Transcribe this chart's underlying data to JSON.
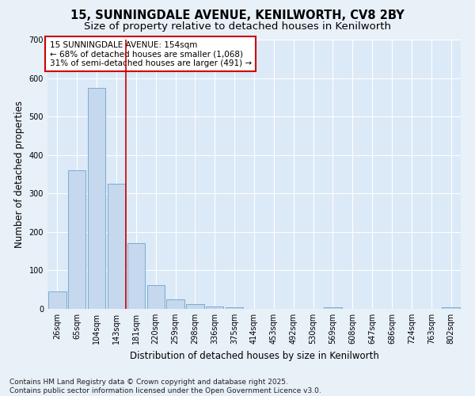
{
  "title_line1": "15, SUNNINGDALE AVENUE, KENILWORTH, CV8 2BY",
  "title_line2": "Size of property relative to detached houses in Kenilworth",
  "xlabel": "Distribution of detached houses by size in Kenilworth",
  "ylabel": "Number of detached properties",
  "bar_color": "#c5d8ee",
  "bar_edge_color": "#7aabce",
  "background_color": "#e8f0f8",
  "plot_bg_color": "#dce9f7",
  "grid_color": "#ffffff",
  "categories": [
    "26sqm",
    "65sqm",
    "104sqm",
    "143sqm",
    "181sqm",
    "220sqm",
    "259sqm",
    "298sqm",
    "336sqm",
    "375sqm",
    "414sqm",
    "453sqm",
    "492sqm",
    "530sqm",
    "569sqm",
    "608sqm",
    "647sqm",
    "686sqm",
    "724sqm",
    "763sqm",
    "802sqm"
  ],
  "values": [
    46,
    360,
    575,
    325,
    170,
    62,
    24,
    12,
    7,
    4,
    0,
    0,
    0,
    0,
    4,
    0,
    0,
    0,
    0,
    0,
    4
  ],
  "ylim": [
    0,
    700
  ],
  "yticks": [
    0,
    100,
    200,
    300,
    400,
    500,
    600,
    700
  ],
  "vline_x": 3.5,
  "vline_color": "#cc0000",
  "annotation_text": "15 SUNNINGDALE AVENUE: 154sqm\n← 68% of detached houses are smaller (1,068)\n31% of semi-detached houses are larger (491) →",
  "annotation_box_facecolor": "#ffffff",
  "annotation_box_edgecolor": "#cc0000",
  "footer_line1": "Contains HM Land Registry data © Crown copyright and database right 2025.",
  "footer_line2": "Contains public sector information licensed under the Open Government Licence v3.0.",
  "title_fontsize": 10.5,
  "subtitle_fontsize": 9.5,
  "tick_fontsize": 7,
  "ylabel_fontsize": 8.5,
  "xlabel_fontsize": 8.5,
  "annotation_fontsize": 7.5,
  "footer_fontsize": 6.5
}
